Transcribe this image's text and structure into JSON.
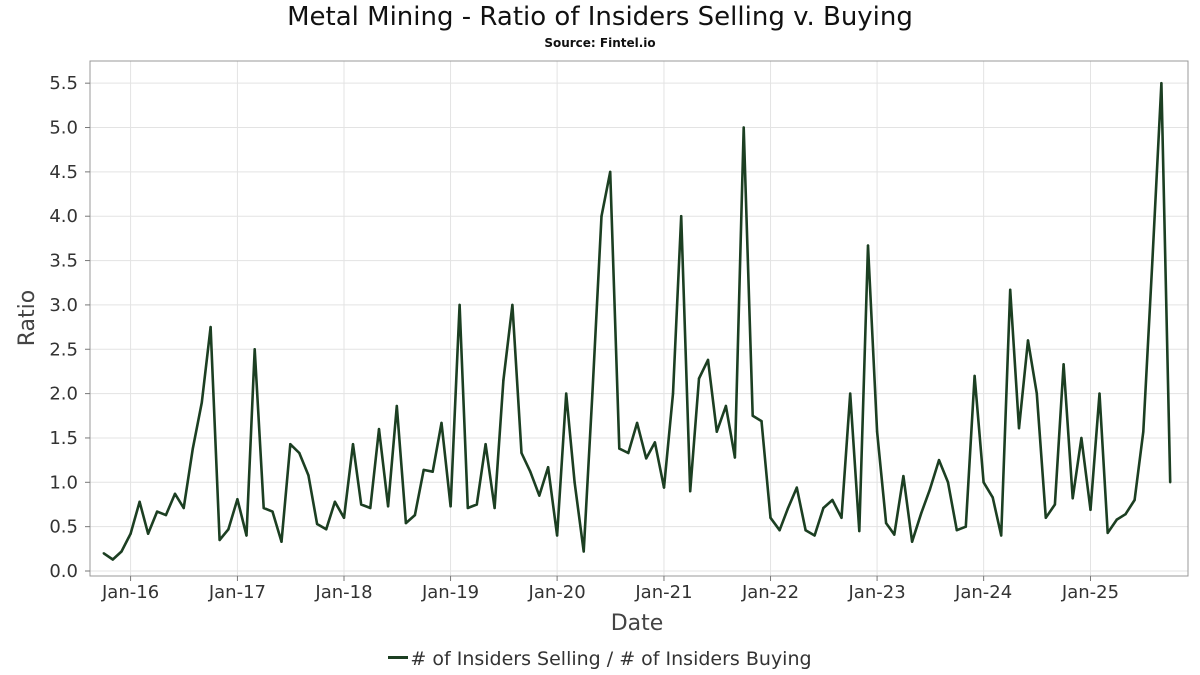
{
  "title": "Metal Mining - Ratio of Insiders Selling v. Buying",
  "subtitle": "Source: Fintel.io",
  "chart_data": {
    "type": "line",
    "title": "Metal Mining - Ratio of Insiders Selling v. Buying",
    "subtitle": "Source: Fintel.io",
    "xlabel": "Date",
    "ylabel": "Ratio",
    "x_tick_labels": [
      "Jan-16",
      "Jan-17",
      "Jan-18",
      "Jan-19",
      "Jan-20",
      "Jan-21",
      "Jan-22",
      "Jan-23",
      "Jan-24",
      "Jan-25"
    ],
    "y_tick_labels": [
      "0.0",
      "0.5",
      "1.0",
      "1.5",
      "2.0",
      "2.5",
      "3.0",
      "3.5",
      "4.0",
      "4.5",
      "5.0",
      "5.5"
    ],
    "ylim": [
      0,
      5.75
    ],
    "xlim": [
      "2015-08-15",
      "2025-12-01"
    ],
    "grid": true,
    "legend_position": "bottom",
    "line_color": "#1c3f22",
    "series": [
      {
        "name": "# of Insiders Selling / # of Insiders Buying",
        "x": [
          "2015-10-01",
          "2015-11-01",
          "2015-12-01",
          "2016-01-01",
          "2016-02-01",
          "2016-03-01",
          "2016-04-01",
          "2016-05-01",
          "2016-06-01",
          "2016-07-01",
          "2016-08-01",
          "2016-09-01",
          "2016-10-01",
          "2016-11-01",
          "2016-12-01",
          "2017-01-01",
          "2017-02-01",
          "2017-03-01",
          "2017-04-01",
          "2017-05-01",
          "2017-06-01",
          "2017-07-01",
          "2017-08-01",
          "2017-09-01",
          "2017-10-01",
          "2017-11-01",
          "2017-12-01",
          "2018-01-01",
          "2018-02-01",
          "2018-03-01",
          "2018-04-01",
          "2018-05-01",
          "2018-06-01",
          "2018-07-01",
          "2018-08-01",
          "2018-09-01",
          "2018-10-01",
          "2018-11-01",
          "2018-12-01",
          "2019-01-01",
          "2019-02-01",
          "2019-03-01",
          "2019-04-01",
          "2019-05-01",
          "2019-06-01",
          "2019-07-01",
          "2019-08-01",
          "2019-09-01",
          "2019-10-01",
          "2019-11-01",
          "2019-12-01",
          "2020-01-01",
          "2020-02-01",
          "2020-03-01",
          "2020-04-01",
          "2020-05-01",
          "2020-06-01",
          "2020-07-01",
          "2020-08-01",
          "2020-09-01",
          "2020-10-01",
          "2020-11-01",
          "2020-12-01",
          "2021-01-01",
          "2021-02-01",
          "2021-03-01",
          "2021-04-01",
          "2021-05-01",
          "2021-06-01",
          "2021-07-01",
          "2021-08-01",
          "2021-09-01",
          "2021-10-01",
          "2021-11-01",
          "2021-12-01",
          "2022-01-01",
          "2022-02-01",
          "2022-03-01",
          "2022-04-01",
          "2022-05-01",
          "2022-06-01",
          "2022-07-01",
          "2022-08-01",
          "2022-09-01",
          "2022-10-01",
          "2022-11-01",
          "2022-12-01",
          "2023-01-01",
          "2023-02-01",
          "2023-03-01",
          "2023-04-01",
          "2023-05-01",
          "2023-06-01",
          "2023-07-01",
          "2023-08-01",
          "2023-09-01",
          "2023-10-01",
          "2023-11-01",
          "2023-12-01",
          "2024-01-01",
          "2024-02-01",
          "2024-03-01",
          "2024-04-01",
          "2024-05-01",
          "2024-06-01",
          "2024-07-01",
          "2024-08-01",
          "2024-09-01",
          "2024-10-01",
          "2024-11-01",
          "2024-12-01",
          "2025-01-01",
          "2025-02-01",
          "2025-03-01",
          "2025-04-01",
          "2025-05-01",
          "2025-06-01",
          "2025-07-01",
          "2025-08-01",
          "2025-09-01",
          "2025-10-01"
        ],
        "values": [
          0.2,
          0.13,
          0.22,
          0.42,
          0.78,
          0.42,
          0.67,
          0.63,
          0.87,
          0.71,
          1.38,
          1.9,
          2.75,
          0.35,
          0.47,
          0.81,
          0.4,
          2.5,
          0.71,
          0.67,
          0.33,
          1.43,
          1.33,
          1.08,
          0.53,
          0.47,
          0.78,
          0.6,
          1.43,
          0.75,
          0.71,
          1.6,
          0.73,
          1.86,
          0.54,
          0.63,
          1.14,
          1.12,
          1.67,
          0.73,
          3.0,
          0.71,
          0.75,
          1.43,
          0.71,
          2.15,
          3.0,
          1.33,
          1.12,
          0.85,
          1.17,
          0.4,
          2.0,
          1.0,
          0.22,
          2.0,
          4.0,
          4.5,
          1.38,
          1.33,
          1.67,
          1.27,
          1.45,
          0.94,
          2.0,
          4.0,
          0.9,
          2.17,
          2.38,
          1.57,
          1.86,
          1.28,
          5.0,
          1.75,
          1.69,
          0.6,
          0.46,
          0.7,
          0.94,
          0.46,
          0.4,
          0.71,
          0.8,
          0.6,
          2.0,
          0.45,
          3.67,
          1.57,
          0.54,
          0.41,
          1.07,
          0.33,
          0.65,
          0.92,
          1.25,
          1.0,
          0.46,
          0.5,
          2.2,
          1.0,
          0.83,
          0.4,
          3.17,
          1.61,
          2.6,
          2.0,
          0.6,
          0.75,
          2.33,
          0.82,
          1.5,
          0.69,
          2.0,
          0.43,
          0.58,
          0.64,
          0.8,
          1.57,
          3.5,
          5.5,
          1.0
        ]
      }
    ]
  }
}
